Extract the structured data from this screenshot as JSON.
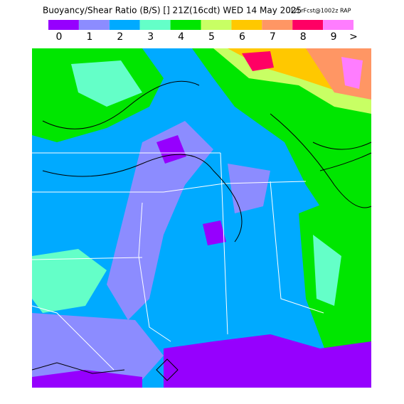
{
  "header": {
    "title": "Buoyancy/Shear Ratio (B/S) [] 21Z(16cdt) WED 14 May 2025",
    "run": "12hrFcst@1002z RAP"
  },
  "legend": {
    "items": [
      {
        "label": "0",
        "color": "#9600fe"
      },
      {
        "label": "1",
        "color": "#8c8cff"
      },
      {
        "label": "2",
        "color": "#00aaff"
      },
      {
        "label": "3",
        "color": "#64ffc8"
      },
      {
        "label": "4",
        "color": "#00e600"
      },
      {
        "label": "5",
        "color": "#c8ff64"
      },
      {
        "label": "6",
        "color": "#ffc800"
      },
      {
        "label": "7",
        "color": "#ff9664"
      },
      {
        "label": "8",
        "color": "#ff0064"
      },
      {
        "label": "9",
        "color": "#ff7dff"
      }
    ],
    "more": ">"
  }
}
